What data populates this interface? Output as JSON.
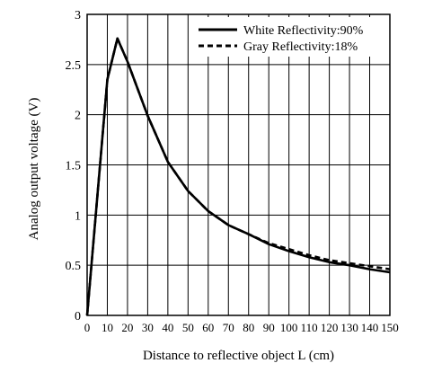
{
  "chart_data": {
    "type": "line",
    "title": "",
    "xlabel": "Distance to reflective object L (cm)",
    "ylabel": "Analog output voltage (V)",
    "xlim": [
      0,
      150
    ],
    "ylim": [
      0,
      3
    ],
    "x_ticks": [
      0,
      10,
      20,
      30,
      40,
      50,
      60,
      70,
      80,
      90,
      100,
      110,
      120,
      130,
      140,
      150
    ],
    "y_ticks": [
      0,
      0.5,
      1,
      1.5,
      2,
      2.5,
      3
    ],
    "y_tick_labels": [
      "0",
      "0.5",
      "1",
      "1.5",
      "2",
      "2.5",
      "3"
    ],
    "grid": true,
    "legend_position": "top-right",
    "series": [
      {
        "name": "White Reflectivity:90%",
        "style": "solid",
        "color": "#000000",
        "x": [
          0,
          10,
          15,
          20,
          30,
          40,
          50,
          60,
          70,
          80,
          90,
          100,
          110,
          120,
          130,
          140,
          150
        ],
        "y": [
          0,
          2.35,
          2.76,
          2.53,
          1.99,
          1.53,
          1.24,
          1.04,
          0.9,
          0.81,
          0.71,
          0.64,
          0.58,
          0.53,
          0.5,
          0.46,
          0.43
        ]
      },
      {
        "name": "Gray Reflectivity:18%",
        "style": "dashed",
        "color": "#000000",
        "x": [
          0,
          10,
          15,
          20,
          30,
          40,
          50,
          60,
          70,
          80,
          90,
          100,
          110,
          120,
          130,
          140,
          150
        ],
        "y": [
          0,
          2.35,
          2.76,
          2.53,
          1.99,
          1.53,
          1.24,
          1.04,
          0.9,
          0.81,
          0.72,
          0.66,
          0.6,
          0.55,
          0.52,
          0.49,
          0.46
        ]
      }
    ]
  }
}
